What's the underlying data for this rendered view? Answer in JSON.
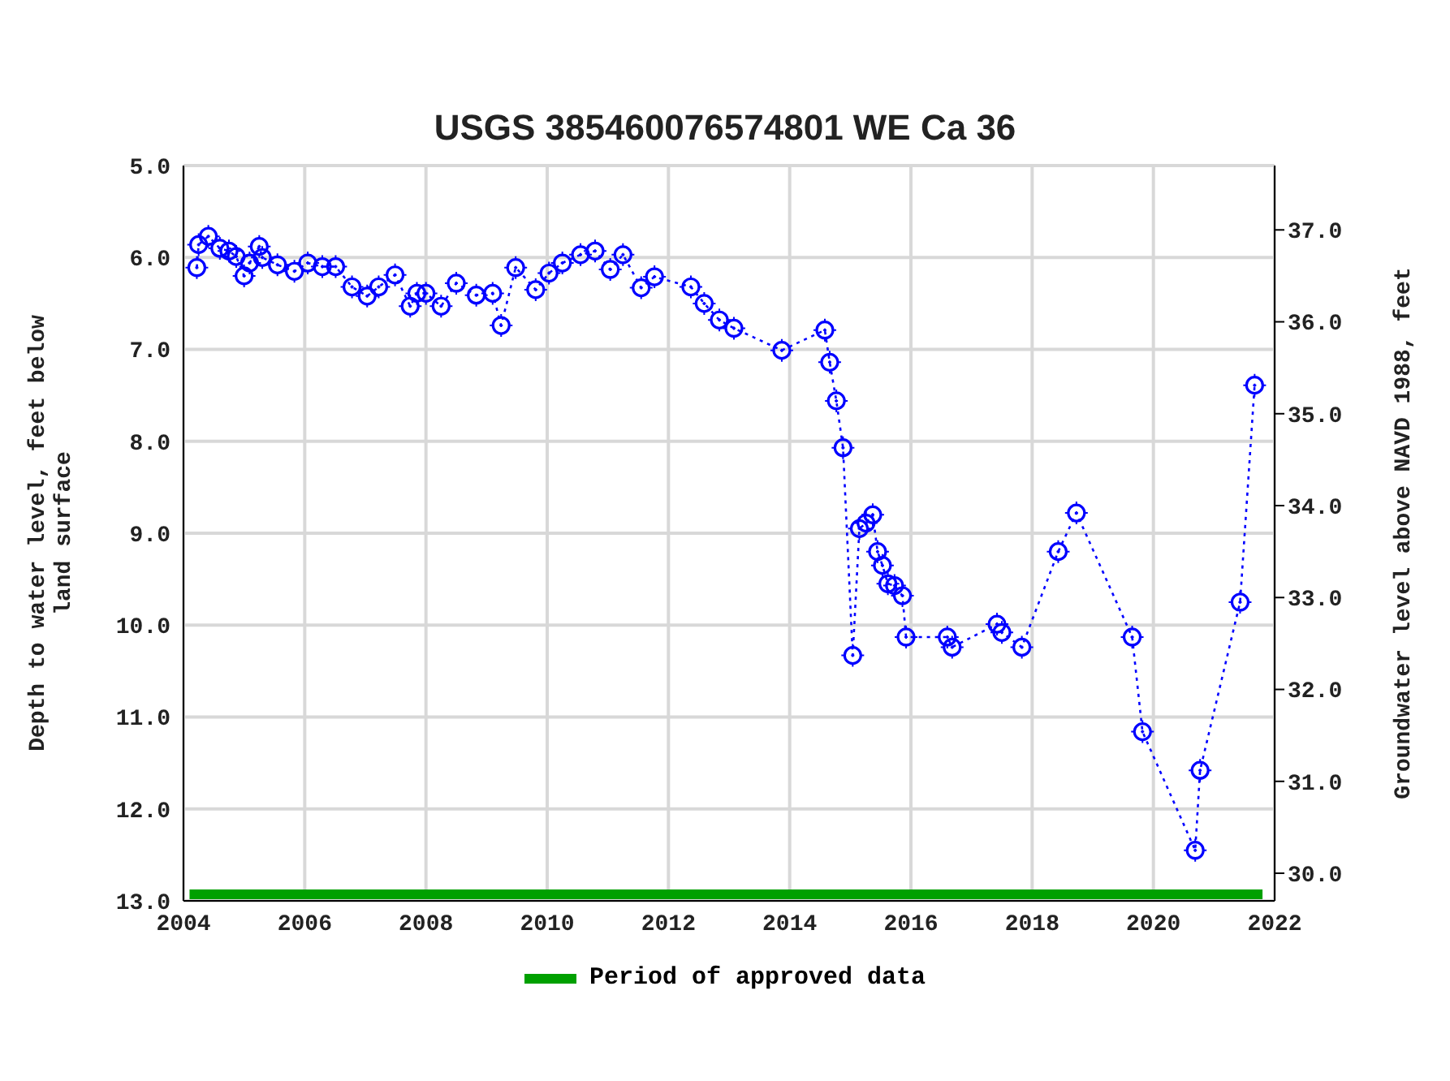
{
  "chart_data": {
    "type": "line",
    "title": "USGS 385460076574801 WE Ca  36",
    "xlim": [
      2004,
      2022
    ],
    "xticks": [
      2004,
      2006,
      2008,
      2010,
      2012,
      2014,
      2016,
      2018,
      2020,
      2022
    ],
    "ylim": [
      13,
      5
    ],
    "yticks": [
      {
        "value": 5,
        "label": "5.0"
      },
      {
        "value": 6,
        "label": "6.0"
      },
      {
        "value": 7,
        "label": "7.0"
      },
      {
        "value": 8,
        "label": "8.0"
      },
      {
        "value": 9,
        "label": "9.0"
      },
      {
        "value": 10,
        "label": "10.0"
      },
      {
        "value": 11,
        "label": "11.0"
      },
      {
        "value": 12,
        "label": "12.0"
      },
      {
        "value": 13,
        "label": "13.0"
      }
    ],
    "y2lim": [
      29.7,
      37.7
    ],
    "y2ticks": [
      {
        "value": 30,
        "label": "30.0"
      },
      {
        "value": 31,
        "label": "31.0"
      },
      {
        "value": 32,
        "label": "32.0"
      },
      {
        "value": 33,
        "label": "33.0"
      },
      {
        "value": 34,
        "label": "34.0"
      },
      {
        "value": 35,
        "label": "35.0"
      },
      {
        "value": 36,
        "label": "36.0"
      },
      {
        "value": 37,
        "label": "37.0"
      }
    ],
    "ylabel": "Depth to water level, feet below land surface",
    "y2label": "Groundwater level above NAVD 1988, feet",
    "grid": true,
    "legend": "bottom",
    "marker": "circle",
    "line_style": "dotted",
    "series": [
      {
        "color": "#0000ff",
        "x": [
          2004.22,
          2004.25,
          2004.41,
          2004.6,
          2004.75,
          2004.87,
          2005.0,
          2005.09,
          2005.25,
          2005.3,
          2005.55,
          2005.83,
          2006.05,
          2006.29,
          2006.51,
          2006.78,
          2007.03,
          2007.22,
          2007.49,
          2007.74,
          2007.85,
          2008.0,
          2008.25,
          2008.5,
          2008.83,
          2009.1,
          2009.24,
          2009.48,
          2009.81,
          2010.03,
          2010.25,
          2010.55,
          2010.79,
          2011.04,
          2011.25,
          2011.55,
          2011.77,
          2012.37,
          2012.59,
          2012.84,
          2013.08,
          2013.87,
          2014.58,
          2014.66,
          2014.77,
          2014.88,
          2015.04,
          2015.15,
          2015.26,
          2015.37,
          2015.45,
          2015.53,
          2015.62,
          2015.73,
          2015.86,
          2015.92,
          2016.6,
          2016.68,
          2017.42,
          2017.5,
          2017.83,
          2018.43,
          2018.73,
          2019.65,
          2019.82,
          2020.69,
          2020.77,
          2021.43,
          2021.67
        ],
        "values": [
          6.11,
          5.86,
          5.77,
          5.9,
          5.93,
          5.99,
          6.2,
          6.06,
          5.88,
          6.0,
          6.08,
          6.15,
          6.06,
          6.1,
          6.1,
          6.32,
          6.42,
          6.32,
          6.19,
          6.53,
          6.39,
          6.39,
          6.53,
          6.28,
          6.41,
          6.39,
          6.74,
          6.11,
          6.35,
          6.17,
          6.06,
          5.97,
          5.93,
          6.13,
          5.97,
          6.33,
          6.21,
          6.32,
          6.5,
          6.68,
          6.77,
          7.01,
          6.79,
          7.14,
          7.56,
          8.07,
          10.33,
          8.95,
          8.89,
          8.8,
          9.2,
          9.35,
          9.55,
          9.57,
          9.68,
          10.13,
          10.13,
          10.24,
          9.99,
          10.08,
          10.24,
          9.2,
          8.78,
          10.13,
          11.16,
          12.45,
          11.58,
          9.75,
          7.39
        ]
      },
      {
        "name": "Period of approved data",
        "color": "#00a000",
        "marker": "none",
        "line_style": "solid",
        "x": [
          2004.1,
          2021.8
        ],
        "values": [
          12.93,
          12.93
        ]
      }
    ]
  }
}
